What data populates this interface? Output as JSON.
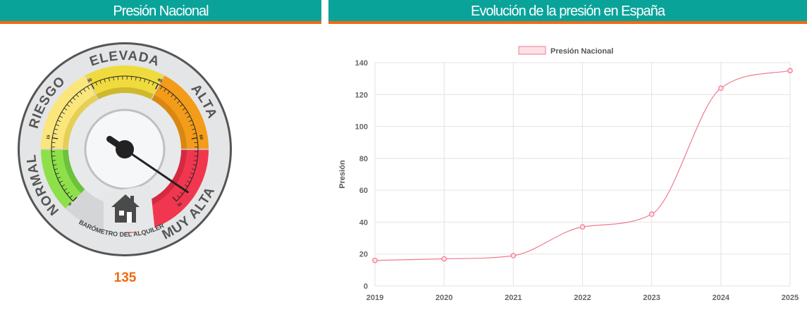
{
  "left_panel": {
    "title": "Presión Nacional",
    "gauge": {
      "zones": [
        "NORMAL",
        "RIESGO",
        "ELEVADA",
        "ALTA",
        "MUY ALTA"
      ],
      "zone_colors": [
        "#8ee04a",
        "#fbe67c",
        "#f0db3e",
        "#f39c19",
        "#f1374f"
      ],
      "tick_labels": [
        "0",
        "15",
        "30",
        "45",
        "60",
        "75"
      ],
      "caption": "BARÓMETRO DEL ALQUILER",
      "house_icon": "house-icon",
      "needle_fraction": 0.96,
      "value": "135"
    }
  },
  "right_panel": {
    "title": "Evolución de la presión en España"
  },
  "chart_data": {
    "type": "line",
    "x": [
      "2019",
      "2020",
      "2021",
      "2022",
      "2023",
      "2024",
      "2025"
    ],
    "series": [
      {
        "name": "Presión Nacional",
        "values": [
          16,
          17,
          19,
          37,
          45,
          124,
          135
        ],
        "color": "#f0798f"
      }
    ],
    "ylabel": "Presión",
    "xlabel": "",
    "ylim": [
      0,
      140
    ],
    "yticks": [
      0,
      20,
      40,
      60,
      80,
      100,
      120,
      140
    ],
    "grid": true,
    "legend": "top"
  }
}
